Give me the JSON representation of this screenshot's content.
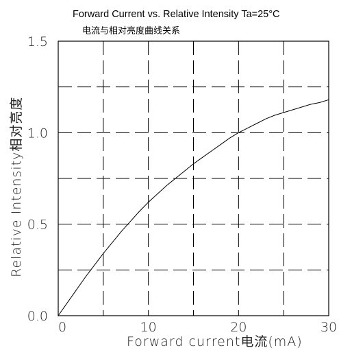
{
  "chart_data": {
    "type": "line",
    "title": "Forward Current vs. Relative Intensity  Ta=25°C",
    "subtitle": "电流与相对亮度曲线关系",
    "xlabel": "Forward current电流(mA)",
    "ylabel": "Relative Intensity相对亮度",
    "xlim": [
      0,
      30
    ],
    "ylim": [
      0,
      1.5
    ],
    "x_ticks": [
      "0",
      "10",
      "20",
      "30"
    ],
    "y_ticks": [
      "0.0",
      "0.5",
      "1.0",
      "1.5"
    ],
    "grid": true,
    "series": [
      {
        "x": [
          0,
          1,
          2,
          3,
          4,
          5,
          6,
          7,
          8,
          9,
          10,
          11,
          12,
          13,
          14,
          15,
          16,
          17,
          18,
          19,
          20,
          21,
          22,
          23,
          24,
          25,
          26,
          27,
          28,
          29,
          30
        ],
        "values": [
          0.0,
          0.07,
          0.14,
          0.21,
          0.275,
          0.34,
          0.4,
          0.46,
          0.515,
          0.57,
          0.62,
          0.665,
          0.71,
          0.75,
          0.79,
          0.83,
          0.865,
          0.9,
          0.935,
          0.97,
          1.0,
          1.025,
          1.05,
          1.075,
          1.095,
          1.11,
          1.125,
          1.14,
          1.155,
          1.165,
          1.18
        ]
      }
    ]
  }
}
